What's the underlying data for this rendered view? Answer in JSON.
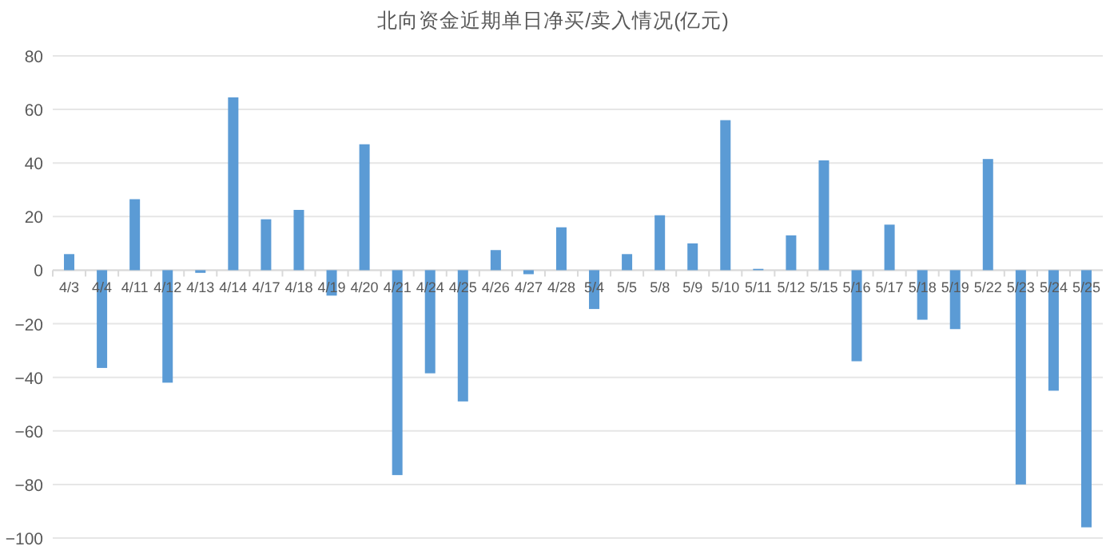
{
  "chart_data": {
    "type": "bar",
    "title": "北向资金近期单日净买/卖入情况(亿元)",
    "categories": [
      "4/3",
      "4/4",
      "4/11",
      "4/12",
      "4/13",
      "4/14",
      "4/17",
      "4/18",
      "4/19",
      "4/20",
      "4/21",
      "4/24",
      "4/25",
      "4/26",
      "4/27",
      "4/28",
      "5/4",
      "5/5",
      "5/8",
      "5/9",
      "5/10",
      "5/11",
      "5/12",
      "5/15",
      "5/16",
      "5/17",
      "5/18",
      "5/19",
      "5/22",
      "5/23",
      "5/24",
      "5/25"
    ],
    "values": [
      6,
      -36.5,
      26.5,
      -42,
      -1,
      64.5,
      19,
      22.5,
      -9.5,
      47,
      -76.5,
      -38.5,
      -49,
      7.5,
      -1.5,
      16,
      -14.5,
      6,
      20.5,
      10,
      56,
      0.5,
      13,
      41,
      -34,
      17,
      -18.5,
      -22,
      41.5,
      -80,
      -45,
      -96
    ],
    "color": "#5b9bd5",
    "ylim": [
      -100,
      80
    ],
    "yticks": [
      -100,
      -80,
      -60,
      -40,
      -20,
      0,
      20,
      40,
      60,
      80
    ],
    "grid": "y"
  }
}
